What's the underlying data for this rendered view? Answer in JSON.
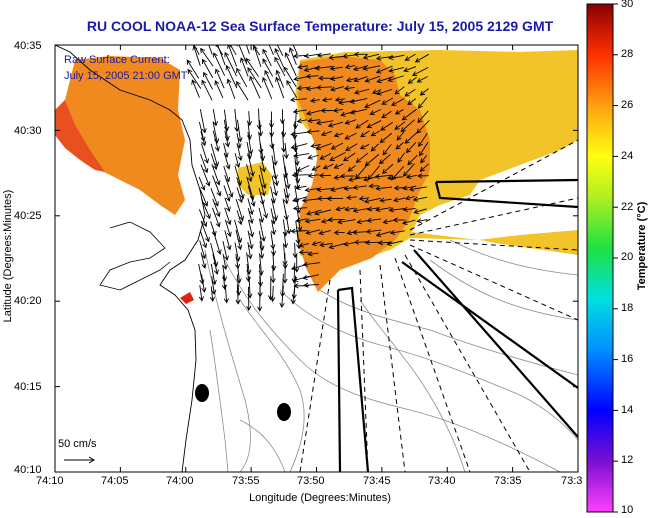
{
  "title": "RU COOL  NOAA-12  Sea Surface Temperature:  July 15, 2005 2129 GMT",
  "legend": {
    "line1": "Raw Surface Current:",
    "line2": "July 15, 2005 21:00 GMT"
  },
  "scale_label": "50 cm/s",
  "axes": {
    "xlabel": "Longitude (Degrees:Minutes)",
    "ylabel": "Latitude (Degrees:Minutes)",
    "x_ticks": [
      "74:10",
      "74:05",
      "74:00",
      "73:55",
      "73:50",
      "73:45",
      "73:40",
      "73:35",
      "73:3"
    ],
    "y_ticks": [
      "40:35",
      "40:30",
      "40:25",
      "40:20",
      "40:15",
      "40:10"
    ]
  },
  "colorbar": {
    "label": "Temperature (°C)",
    "ticks": [
      "30",
      "28",
      "26",
      "24",
      "22",
      "20",
      "18",
      "16",
      "14",
      "12",
      "10"
    ],
    "min": 10,
    "max": 30
  },
  "colors": {
    "title": "#1a1aa8",
    "sst_warm": "#f08a1e",
    "sst_yellow": "#f2c42a",
    "sst_hot": "#e85020"
  }
}
